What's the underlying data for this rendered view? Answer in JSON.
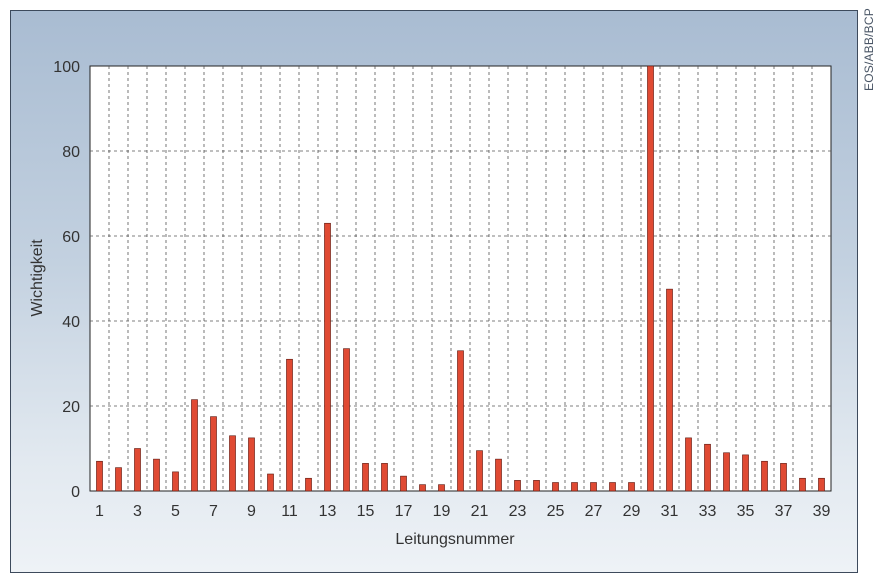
{
  "chart_data": {
    "type": "bar",
    "title": "",
    "xlabel": "Leitungsnummer",
    "ylabel": "Wichtigkeit",
    "ylim": [
      0,
      100
    ],
    "yticks": [
      0,
      20,
      40,
      60,
      80,
      100
    ],
    "categories": [
      1,
      2,
      3,
      4,
      5,
      6,
      7,
      8,
      9,
      10,
      11,
      12,
      13,
      14,
      15,
      16,
      17,
      18,
      19,
      20,
      21,
      22,
      23,
      24,
      25,
      26,
      27,
      28,
      29,
      30,
      31,
      32,
      33,
      34,
      35,
      36,
      37,
      38,
      39
    ],
    "xtick_labels": [
      "1",
      "3",
      "5",
      "7",
      "9",
      "11",
      "13",
      "15",
      "17",
      "19",
      "21",
      "23",
      "25",
      "27",
      "29",
      "31",
      "33",
      "35",
      "37",
      "39"
    ],
    "values": [
      7,
      5.5,
      10,
      7.5,
      4.5,
      21.5,
      17.5,
      13,
      12.5,
      4,
      31,
      3,
      63,
      33.5,
      6.5,
      6.5,
      3.5,
      1.5,
      1.5,
      33,
      9.5,
      7.5,
      2.5,
      2.5,
      2,
      2,
      2,
      2,
      2,
      100,
      47.5,
      12.5,
      11,
      9,
      8.5,
      7,
      6.5,
      3,
      3
    ],
    "grid": true,
    "colors": {
      "bar": "#e04a33",
      "bar_edge": "#5a1a12",
      "grid": "#555555",
      "plot_bg": "#ffffff"
    }
  },
  "credit": "EOS/ABB/BCP"
}
